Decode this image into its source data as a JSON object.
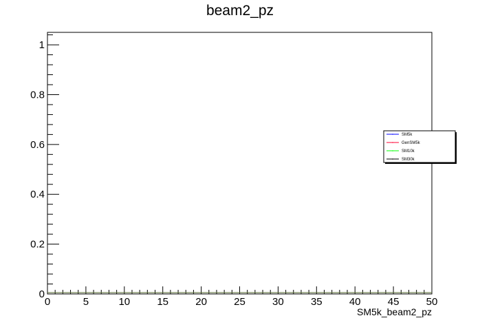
{
  "chart_data": {
    "type": "line",
    "title": "beam2_pz",
    "xlabel": "SM5k_beam2_pz",
    "ylabel": "",
    "xlim": [
      0,
      50
    ],
    "ylim": [
      0,
      1.05
    ],
    "xticks": [
      0,
      5,
      10,
      15,
      20,
      25,
      30,
      35,
      40,
      45,
      50
    ],
    "xtick_labels": [
      "0",
      "5",
      "10",
      "15",
      "20",
      "25",
      "30",
      "35",
      "40",
      "45",
      "50"
    ],
    "yticks": [
      0,
      0.2,
      0.4,
      0.6,
      0.8,
      1
    ],
    "ytick_labels": [
      "0",
      "0.2",
      "0.4",
      "0.6",
      "0.8",
      "1"
    ],
    "grid": false,
    "legend_position": "right",
    "series": [
      {
        "name": "SM5k",
        "color": "#0000ff",
        "x": [
          0,
          50
        ],
        "y": [
          0,
          0
        ]
      },
      {
        "name": "GenSM5k",
        "color": "#ff0033",
        "x": [
          0,
          50
        ],
        "y": [
          0,
          0
        ]
      },
      {
        "name": "SM10k",
        "color": "#00ff00",
        "x": [
          0,
          50
        ],
        "y": [
          0,
          0
        ]
      },
      {
        "name": "SM30k",
        "color": "#000000",
        "x": [
          0,
          50
        ],
        "y": [
          0,
          0
        ]
      }
    ]
  }
}
